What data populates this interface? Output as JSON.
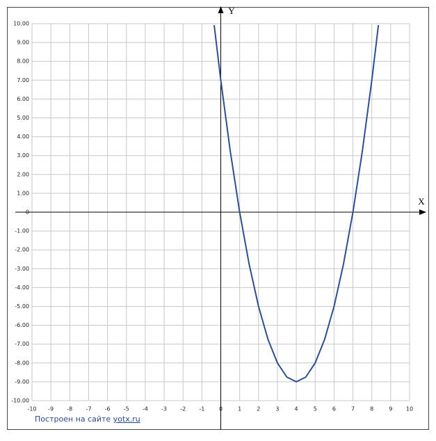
{
  "chart_data": {
    "type": "line",
    "x_label": "X",
    "y_label": "Y",
    "xlim": [
      -10,
      10
    ],
    "ylim": [
      -10,
      10
    ],
    "xticks": [
      -10,
      -9,
      -8,
      -7,
      -6,
      -5,
      -4,
      -3,
      -2,
      -1,
      0,
      1,
      2,
      3,
      4,
      5,
      6,
      7,
      8,
      9,
      10
    ],
    "yticks": [
      {
        "value": -10,
        "label": "-10.00"
      },
      {
        "value": -9,
        "label": "-9.00"
      },
      {
        "value": -8,
        "label": "-8.00"
      },
      {
        "value": -7,
        "label": "-7.00"
      },
      {
        "value": -6,
        "label": "-6.00"
      },
      {
        "value": -5,
        "label": "-5.00"
      },
      {
        "value": -4,
        "label": "-4.00"
      },
      {
        "value": -3,
        "label": "-3.00"
      },
      {
        "value": -2,
        "label": "-2.00"
      },
      {
        "value": -1,
        "label": "-1.00"
      },
      0,
      {
        "value": 1,
        "label": "1.00"
      },
      {
        "value": 2,
        "label": "2.00"
      },
      {
        "value": 3,
        "label": "3.00"
      },
      {
        "value": 4,
        "label": "4.00"
      },
      {
        "value": 5,
        "label": "5.00"
      },
      {
        "value": 6,
        "label": "6.00"
      },
      {
        "value": 7,
        "label": "7.00"
      },
      {
        "value": 8,
        "label": "8.00"
      },
      {
        "value": 9,
        "label": "9.00"
      },
      {
        "value": 10,
        "label": "10.00"
      }
    ],
    "grid": true,
    "x": [
      -0.35,
      0,
      0.5,
      1,
      1.5,
      2,
      2.5,
      3,
      3.5,
      4,
      4.5,
      5,
      5.5,
      6,
      6.5,
      7,
      7.5,
      8,
      8.35
    ],
    "series": [
      {
        "color": "#2c4f91",
        "values": [
          9.92,
          7,
          3.25,
          0,
          -2.75,
          -5,
          -6.75,
          -8,
          -8.75,
          -9,
          -8.75,
          -8,
          -6.75,
          -5,
          -2.75,
          0,
          3.25,
          7,
          9.92
        ]
      }
    ]
  },
  "footer": {
    "text": "Построен на сайте",
    "link": "yotx.ru"
  }
}
